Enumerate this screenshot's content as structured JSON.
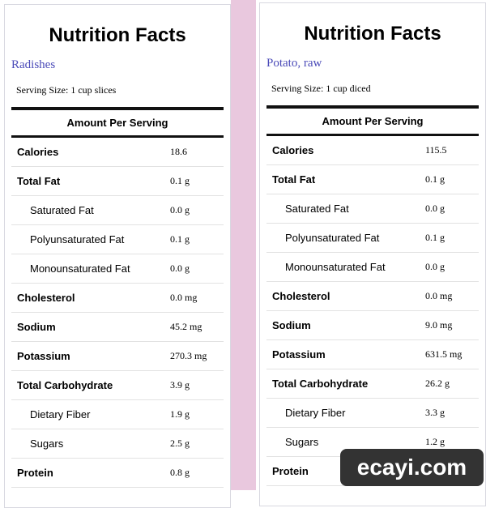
{
  "panels": [
    {
      "title": "Nutrition Facts",
      "food": "Radishes",
      "serving": "Serving Size: 1 cup slices",
      "header": "Amount Per Serving",
      "nutrients": [
        {
          "label": "Calories",
          "value": "18.6"
        },
        {
          "label": "Total Fat",
          "value": "0.1 g",
          "sub": [
            {
              "label": "Saturated Fat",
              "value": "0.0 g"
            },
            {
              "label": "Polyunsaturated Fat",
              "value": "0.1 g"
            },
            {
              "label": "Monounsaturated Fat",
              "value": "0.0 g"
            }
          ]
        },
        {
          "label": "Cholesterol",
          "value": "0.0 mg"
        },
        {
          "label": "Sodium",
          "value": "45.2 mg"
        },
        {
          "label": "Potassium",
          "value": "270.3 mg"
        },
        {
          "label": "Total Carbohydrate",
          "value": "3.9 g",
          "sub": [
            {
              "label": "Dietary Fiber",
              "value": "1.9 g"
            },
            {
              "label": "Sugars",
              "value": "2.5 g"
            }
          ]
        },
        {
          "label": "Protein",
          "value": "0.8 g"
        }
      ]
    },
    {
      "title": "Nutrition Facts",
      "food": "Potato, raw",
      "serving": "Serving Size: 1 cup diced",
      "header": "Amount Per Serving",
      "nutrients": [
        {
          "label": "Calories",
          "value": "115.5"
        },
        {
          "label": "Total Fat",
          "value": "0.1 g",
          "sub": [
            {
              "label": "Saturated Fat",
              "value": "0.0 g"
            },
            {
              "label": "Polyunsaturated Fat",
              "value": "0.1 g"
            },
            {
              "label": "Monounsaturated Fat",
              "value": "0.0 g"
            }
          ]
        },
        {
          "label": "Cholesterol",
          "value": "0.0 mg"
        },
        {
          "label": "Sodium",
          "value": "9.0 mg"
        },
        {
          "label": "Potassium",
          "value": "631.5 mg"
        },
        {
          "label": "Total Carbohydrate",
          "value": "26.2 g",
          "sub": [
            {
              "label": "Dietary Fiber",
              "value": "3.3 g"
            },
            {
              "label": "Sugars",
              "value": "1.2 g"
            }
          ]
        },
        {
          "label": "Protein",
          "value": ""
        }
      ]
    }
  ],
  "watermark": "ecayi.com"
}
